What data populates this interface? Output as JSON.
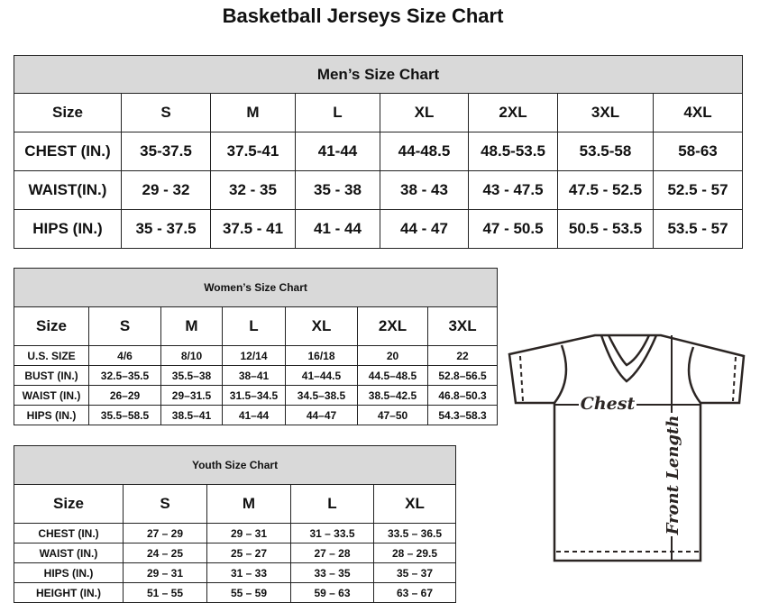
{
  "title": "Basketball Jerseys Size Chart",
  "men": {
    "heading": "Men’s Size Chart",
    "headers": [
      "Size",
      "S",
      "M",
      "L",
      "XL",
      "2XL",
      "3XL",
      "4XL"
    ],
    "rows": [
      [
        "CHEST (IN.)",
        "35-37.5",
        "37.5-41",
        "41-44",
        "44-48.5",
        "48.5-53.5",
        "53.5-58",
        "58-63"
      ],
      [
        "WAIST(IN.)",
        "29 - 32",
        "32 - 35",
        "35 - 38",
        "38 - 43",
        "43 - 47.5",
        "47.5 - 52.5",
        "52.5 - 57"
      ],
      [
        "HIPS (IN.)",
        "35 - 37.5",
        "37.5 - 41",
        "41 - 44",
        "44 - 47",
        "47 - 50.5",
        "50.5 - 53.5",
        "53.5 - 57"
      ]
    ]
  },
  "women": {
    "heading": "Women’s Size Chart",
    "headers": [
      "Size",
      "S",
      "M",
      "L",
      "XL",
      "2XL",
      "3XL"
    ],
    "rows": [
      [
        "U.S.  SIZE",
        "4/6",
        "8/10",
        "12/14",
        "16/18",
        "20",
        "22"
      ],
      [
        "BUST  (IN.)",
        "32.5–35.5",
        "35.5–38",
        "38–41",
        "41–44.5",
        "44.5–48.5",
        "52.8–56.5"
      ],
      [
        "WAIST  (IN.)",
        "26–29",
        "29–31.5",
        "31.5–34.5",
        "34.5–38.5",
        "38.5–42.5",
        "46.8–50.3"
      ],
      [
        "HIPS  (IN.)",
        "35.5–58.5",
        "38.5–41",
        "41–44",
        "44–47",
        "47–50",
        "54.3–58.3"
      ]
    ]
  },
  "youth": {
    "heading": "Youth Size Chart",
    "headers": [
      "Size",
      "S",
      "M",
      "L",
      "XL"
    ],
    "rows": [
      [
        "CHEST  (IN.)",
        "27  –  29",
        "29  –  31",
        "31  –  33.5",
        "33.5  –  36.5"
      ],
      [
        "WAIST  (IN.)",
        "24  –  25",
        "25  –  27",
        "27  –  28",
        "28  –  29.5"
      ],
      [
        "HIPS  (IN.)",
        "29  –  31",
        "31  –  33",
        "33  –  35",
        "35  –  37"
      ],
      [
        "HEIGHT  (IN.)",
        "51  –  55",
        "55  –  59",
        "59  –  63",
        "63  –  67"
      ]
    ]
  },
  "diagram": {
    "chest_label": "Chest",
    "length_label": "Front Length"
  },
  "colors": {
    "header_bg": "#d9d9d9",
    "line": "#2b2523"
  }
}
